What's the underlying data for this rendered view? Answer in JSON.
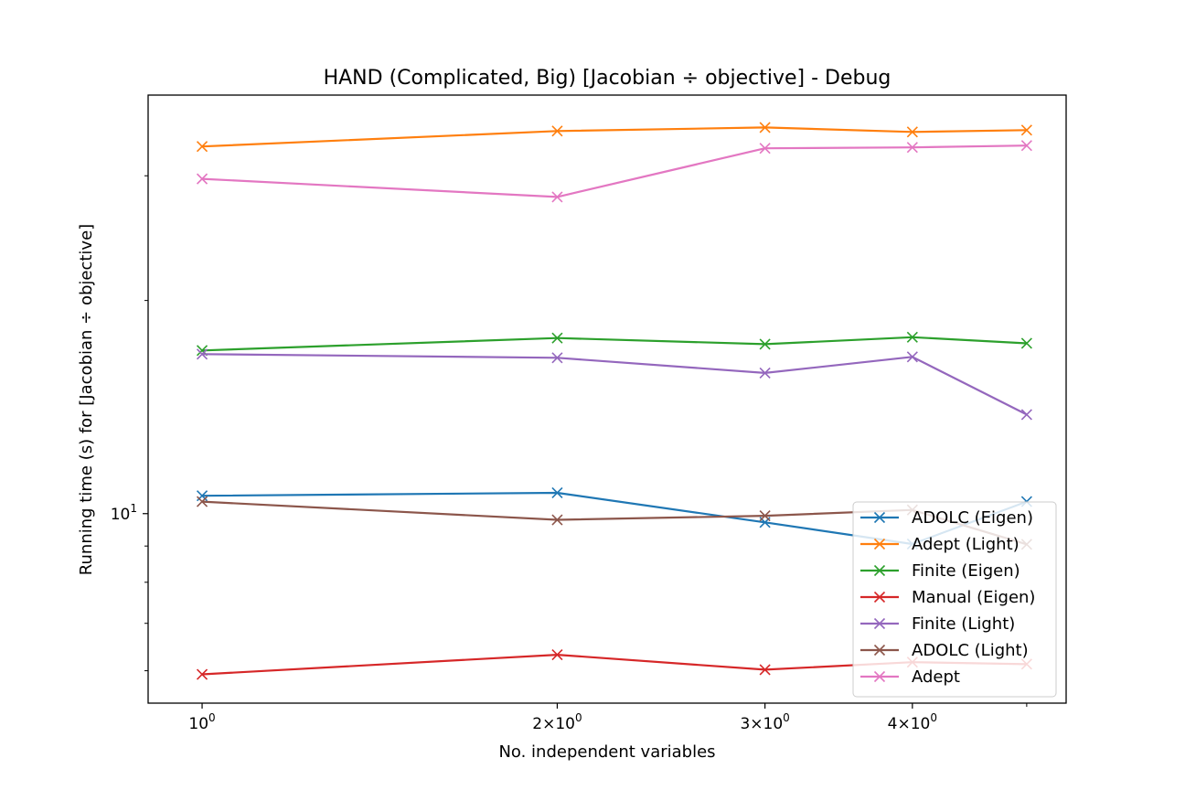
{
  "chart_data": {
    "type": "line",
    "title": "HAND (Complicated, Big) [Jacobian ÷ objective] - Debug",
    "xlabel": "No. independent variables",
    "ylabel": "Running time (s) for [Jacobian ÷ objective]",
    "xscale": "log",
    "yscale": "log",
    "xlim": [
      0.9,
      5.4
    ],
    "ylim": [
      5.4,
      39
    ],
    "x": [
      1,
      2,
      3,
      4,
      5
    ],
    "xticks": [
      {
        "value": 1,
        "base": "10",
        "exp": "0"
      },
      {
        "value": 2,
        "base": "2×10",
        "exp": "0"
      },
      {
        "value": 3,
        "base": "3×10",
        "exp": "0"
      },
      {
        "value": 4,
        "base": "4×10",
        "exp": "0"
      }
    ],
    "yticks": [
      {
        "value": 10,
        "base": "10",
        "exp": "1"
      }
    ],
    "marker": "x",
    "grid": false,
    "legend_position": "lower-right",
    "series": [
      {
        "name": "ADOLC (Eigen)",
        "color": "#1f77b4",
        "values": [
          10.6,
          10.7,
          9.72,
          9.06,
          10.4
        ]
      },
      {
        "name": "Adept (Light)",
        "color": "#ff7f0e",
        "values": [
          33.0,
          34.7,
          35.1,
          34.6,
          34.8
        ]
      },
      {
        "name": "Finite (Eigen)",
        "color": "#2ca02c",
        "values": [
          17.0,
          17.7,
          17.35,
          17.75,
          17.4
        ]
      },
      {
        "name": "Manual (Eigen)",
        "color": "#d62728",
        "values": [
          5.93,
          6.32,
          6.02,
          6.17,
          6.13
        ]
      },
      {
        "name": "Finite (Light)",
        "color": "#9467bd",
        "values": [
          16.8,
          16.6,
          15.8,
          16.65,
          13.8
        ]
      },
      {
        "name": "ADOLC (Light)",
        "color": "#8c564b",
        "values": [
          10.4,
          9.8,
          9.93,
          10.12,
          9.05
        ]
      },
      {
        "name": "Adept",
        "color": "#e377c2",
        "values": [
          29.7,
          28.0,
          32.8,
          32.9,
          33.1
        ]
      }
    ]
  }
}
